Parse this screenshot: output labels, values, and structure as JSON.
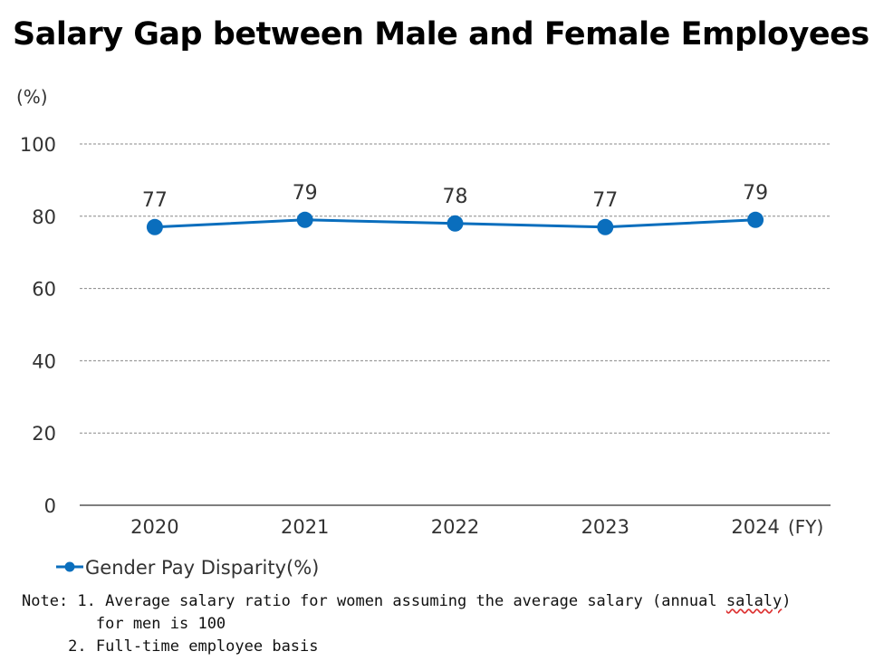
{
  "chart_data": {
    "type": "line",
    "title": "Salary Gap between Male and Female Employees",
    "ylabel": "(%)",
    "xlabel": "(FY)",
    "categories": [
      "2020",
      "2021",
      "2022",
      "2023",
      "2024"
    ],
    "series": [
      {
        "name": "Gender Pay Disparity(%)",
        "values": [
          77,
          79,
          78,
          77,
          79
        ]
      }
    ],
    "data_labels": [
      "77",
      "79",
      "78",
      "77",
      "79"
    ],
    "ylim": [
      0,
      100
    ],
    "yticks": [
      "0",
      "20",
      "40",
      "60",
      "80",
      "100"
    ],
    "grid": true,
    "legend_position": "bottom-left",
    "colors": {
      "series": "#0a6ebd",
      "grid": "#888888",
      "axis": "#555555"
    }
  },
  "notes": {
    "line1": "Note: 1. Average salary ratio for women assuming the average salary (annual ",
    "line1_flagged": "salaly",
    "line1_end": ")",
    "line2": "        for men is 100",
    "line3": "     2. Full-time employee basis"
  }
}
